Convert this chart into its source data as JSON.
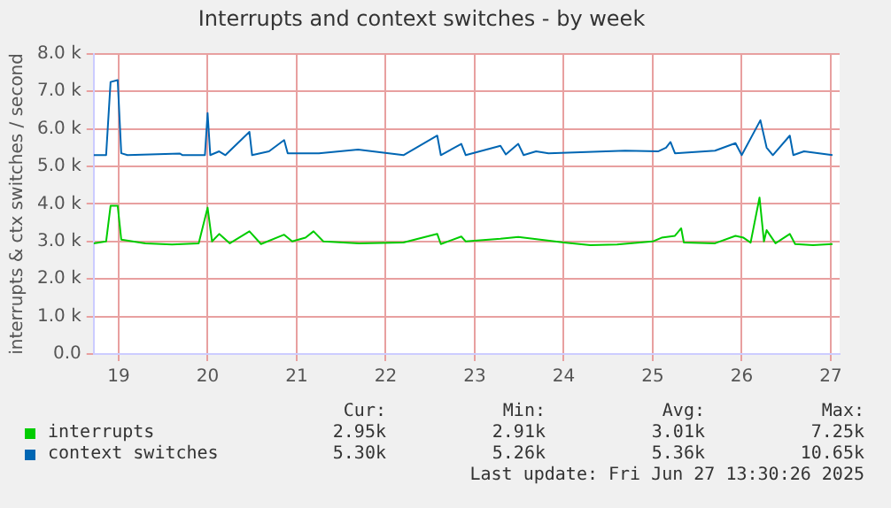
{
  "chart_data": {
    "type": "line",
    "title": "Interrupts and context switches - by week",
    "ylabel": "interrupts & ctx switches / second",
    "xlim": [
      18.72,
      27.1
    ],
    "xticks": [
      19,
      20,
      21,
      22,
      23,
      24,
      25,
      26,
      27
    ],
    "ylim": [
      0,
      8000
    ],
    "yticks": [
      {
        "value": 0,
        "label": "0.0"
      },
      {
        "value": 1000,
        "label": "1.0 k"
      },
      {
        "value": 2000,
        "label": "2.0 k"
      },
      {
        "value": 3000,
        "label": "3.0 k"
      },
      {
        "value": 4000,
        "label": "4.0 k"
      },
      {
        "value": 5000,
        "label": "5.0 k"
      },
      {
        "value": 6000,
        "label": "6.0 k"
      },
      {
        "value": 7000,
        "label": "7.0 k"
      },
      {
        "value": 8000,
        "label": "8.0 k"
      }
    ],
    "grid": true,
    "legend": "bottom",
    "marker": "none",
    "line_style": "solid",
    "series": [
      {
        "name": "interrupts",
        "color": "#00cc00",
        "x": [
          18.72,
          18.86,
          18.91,
          18.99,
          19.03,
          19.3,
          19.6,
          19.9,
          20.0,
          20.05,
          20.13,
          20.25,
          20.47,
          20.6,
          20.86,
          20.95,
          21.1,
          21.19,
          21.3,
          21.7,
          22.2,
          22.58,
          22.62,
          22.85,
          22.9,
          23.29,
          23.49,
          23.9,
          24.0,
          24.3,
          24.6,
          25.0,
          25.1,
          25.25,
          25.32,
          25.35,
          25.7,
          25.93,
          26.02,
          26.1,
          26.2,
          26.25,
          26.28,
          26.38,
          26.54,
          26.6,
          26.8,
          27.02
        ],
        "values": [
          2950,
          3000,
          3950,
          3950,
          3050,
          2950,
          2920,
          2950,
          3900,
          3000,
          3200,
          2950,
          3270,
          2930,
          3180,
          3000,
          3100,
          3270,
          3000,
          2950,
          2970,
          3200,
          2930,
          3130,
          3000,
          3070,
          3120,
          3000,
          2970,
          2900,
          2920,
          3000,
          3100,
          3150,
          3350,
          2970,
          2950,
          3150,
          3100,
          2970,
          4170,
          3000,
          3300,
          2950,
          3200,
          2930,
          2900,
          2930
        ]
      },
      {
        "name": "context switches",
        "color": "#0066b3",
        "x": [
          18.72,
          18.86,
          18.91,
          18.99,
          19.03,
          19.1,
          19.69,
          19.72,
          19.97,
          20.0,
          20.03,
          20.13,
          20.2,
          20.47,
          20.5,
          20.69,
          20.86,
          20.9,
          21.25,
          21.69,
          22.2,
          22.58,
          22.62,
          22.85,
          22.9,
          23.29,
          23.35,
          23.49,
          23.55,
          23.69,
          23.83,
          24.69,
          25.06,
          25.15,
          25.2,
          25.25,
          25.7,
          25.93,
          26.0,
          26.21,
          26.28,
          26.35,
          26.54,
          26.58,
          26.7,
          27.02
        ],
        "values": [
          5300,
          5300,
          7250,
          7300,
          5350,
          5300,
          5340,
          5300,
          5300,
          6420,
          5300,
          5400,
          5300,
          5920,
          5300,
          5400,
          5700,
          5350,
          5350,
          5450,
          5300,
          5820,
          5300,
          5600,
          5300,
          5550,
          5320,
          5600,
          5300,
          5400,
          5350,
          5420,
          5400,
          5500,
          5650,
          5350,
          5420,
          5620,
          5300,
          6230,
          5500,
          5300,
          5820,
          5300,
          5400,
          5300
        ]
      }
    ],
    "annotations": [
      "Cur:",
      "Min:",
      "Avg:",
      "Max:",
      "2.95k",
      "2.91k",
      "3.01k",
      "7.25k",
      "5.30k",
      "5.26k",
      "5.36k",
      "10.65k",
      "Last update: Fri Jun 27 13:30:26 2025"
    ]
  }
}
